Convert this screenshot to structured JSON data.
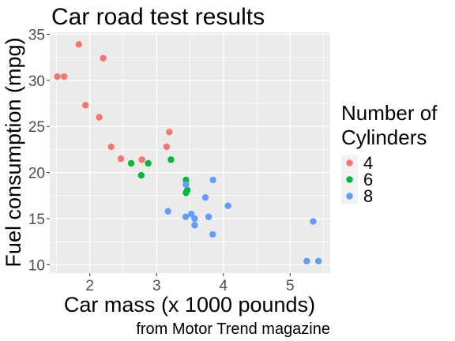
{
  "chart_data": {
    "type": "scatter",
    "title": "Car road test results",
    "xlabel": "Car mass (x 1000 pounds)",
    "ylabel": "Fuel consumption (mpg)",
    "caption": "from Motor Trend magazine",
    "xlim": [
      1.4,
      5.6
    ],
    "ylim": [
      9.1,
      35.2
    ],
    "x_ticks": [
      2,
      3,
      4,
      5
    ],
    "y_ticks": [
      10,
      15,
      20,
      25,
      30,
      35
    ],
    "grid": true,
    "legend": {
      "title": "Number of Cylinders",
      "placement": "right",
      "entries": [
        "4",
        "6",
        "8"
      ]
    },
    "colors": {
      "panel_background": "#ebebeb",
      "grid": "#ffffff",
      "4": "#f8766d",
      "6": "#00ba38",
      "8": "#619cff"
    },
    "series": [
      {
        "name": "4",
        "x": [
          2.32,
          3.19,
          3.15,
          2.2,
          1.615,
          1.835,
          2.465,
          1.935,
          2.14,
          1.513,
          2.78
        ],
        "y": [
          22.8,
          24.4,
          22.8,
          32.4,
          30.4,
          33.9,
          21.5,
          27.3,
          26.0,
          30.4,
          21.4
        ]
      },
      {
        "name": "6",
        "x": [
          2.62,
          2.875,
          3.215,
          3.46,
          3.44,
          3.44,
          2.77
        ],
        "y": [
          21.0,
          21.0,
          21.4,
          18.1,
          19.2,
          17.8,
          19.7
        ]
      },
      {
        "name": "8",
        "x": [
          3.44,
          3.57,
          4.07,
          3.73,
          3.78,
          5.25,
          5.424,
          5.345,
          3.52,
          3.435,
          3.84,
          3.845,
          3.17,
          3.57
        ],
        "y": [
          18.7,
          14.3,
          16.4,
          17.3,
          15.2,
          10.4,
          10.4,
          14.7,
          15.5,
          15.2,
          13.3,
          19.2,
          15.8,
          15.0
        ]
      }
    ]
  }
}
